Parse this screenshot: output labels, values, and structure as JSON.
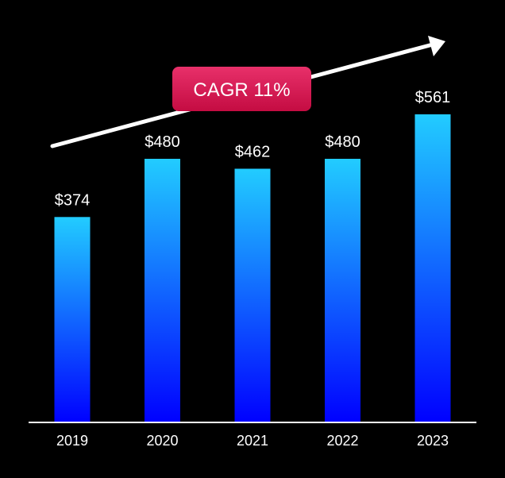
{
  "chart_data": {
    "type": "bar",
    "title": "",
    "xlabel": "",
    "ylabel": "",
    "categories": [
      "2019",
      "2020",
      "2021",
      "2022",
      "2023"
    ],
    "values": [
      374,
      480,
      462,
      480,
      561
    ],
    "value_labels": [
      "$374",
      "$480",
      "$462",
      "$480",
      "$561"
    ],
    "ylim": [
      0,
      561
    ],
    "grid": false,
    "legend": "none",
    "annotation": {
      "text": "CAGR 11%",
      "style": "trend-arrow"
    },
    "colors": {
      "background": "#000000",
      "bar_top": "#22ccff",
      "bar_bottom": "#0000ff",
      "badge_top": "#e8306a",
      "badge_bottom": "#c40c42",
      "axis": "#ffffff",
      "text": "#ffffff"
    }
  }
}
